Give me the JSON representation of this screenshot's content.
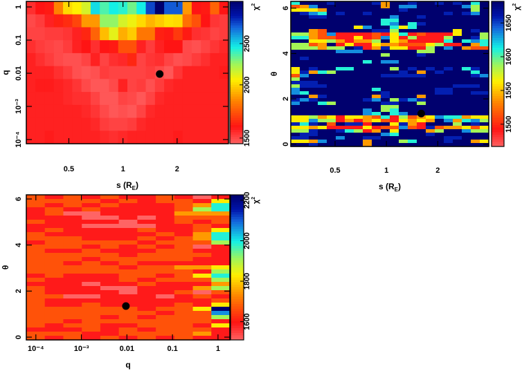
{
  "colorbar_label": {
    "main": "χ",
    "sup": "2"
  },
  "chart_data": [
    {
      "type": "heatmap",
      "id": "s-q",
      "xlabel": {
        "main": "s (R",
        "sub": "E",
        "end": ")"
      },
      "ylabel": "q",
      "xscale": "log",
      "yscale": "log",
      "xlim": [
        0.29,
        3.86
      ],
      "ylim": [
        7.5e-05,
        1.47
      ],
      "xticks": [
        {
          "v": 0.5,
          "label": "0.5"
        },
        {
          "v": 1,
          "label": "1"
        },
        {
          "v": 2,
          "label": "2"
        }
      ],
      "yticks": [
        {
          "v": 1,
          "label": "1"
        },
        {
          "v": 0.1,
          "label": "0.1"
        },
        {
          "v": 0.01,
          "label": "0.01"
        },
        {
          "v": 0.001,
          "label": "10⁻³"
        },
        {
          "v": 0.0001,
          "label": "10⁻⁴"
        }
      ],
      "colorbar": {
        "scale": "log",
        "clim": [
          1455,
          3140
        ],
        "ticks": [
          {
            "v": 1500,
            "label": "1500"
          },
          {
            "v": 2000,
            "label": "2000"
          },
          {
            "v": 2500,
            "label": "2500"
          }
        ]
      },
      "best_fit": {
        "x": 1.6,
        "y": 0.0095
      },
      "z_levels_note": "rows top-to-bottom, normalized colour level 0 (min) to 1 (max)",
      "z": [
        [
          0.08,
          0.12,
          0.13,
          0.3,
          0.42,
          0.45,
          0.5,
          0.7,
          0.63,
          0.68,
          0.66,
          0.6,
          0.68,
          0.85,
          1.0,
          0.83,
          0.83,
          0.33,
          0.12,
          0.13,
          0.25,
          0.12
        ],
        [
          0.04,
          0.06,
          0.1,
          0.14,
          0.16,
          0.2,
          0.33,
          0.33,
          0.57,
          0.57,
          0.5,
          0.47,
          0.42,
          0.37,
          0.4,
          0.43,
          0.42,
          0.27,
          0.22,
          0.12,
          0.07,
          0.06
        ],
        [
          0.05,
          0.05,
          0.06,
          0.06,
          0.07,
          0.1,
          0.15,
          0.25,
          0.38,
          0.48,
          0.36,
          0.4,
          0.28,
          0.28,
          0.14,
          0.13,
          0.18,
          0.13,
          0.08,
          0.07,
          0.05,
          0.06
        ],
        [
          0.08,
          0.06,
          0.05,
          0.04,
          0.06,
          0.1,
          0.12,
          0.08,
          0.12,
          0.13,
          0.22,
          0.22,
          0.1,
          0.06,
          0.1,
          0.12,
          0.12,
          0.04,
          0.03,
          0.05,
          0.07,
          0.09
        ],
        [
          0.1,
          0.08,
          0.06,
          0.04,
          0.03,
          0.03,
          0.05,
          0.1,
          0.05,
          0.08,
          0.09,
          0.15,
          0.05,
          0.07,
          0.08,
          0.05,
          0.03,
          0.04,
          0.06,
          0.08,
          0.1,
          0.1
        ],
        [
          0.1,
          0.1,
          0.1,
          0.08,
          0.06,
          0.03,
          0.02,
          0.03,
          0.06,
          0.05,
          0.05,
          0.05,
          0.05,
          0.06,
          0.04,
          0.02,
          0.07,
          0.1,
          0.1,
          0.1,
          0.1,
          0.11
        ],
        [
          0.1,
          0.11,
          0.11,
          0.1,
          0.09,
          0.07,
          0.04,
          0.02,
          0.02,
          0.04,
          0.1,
          0.05,
          0.06,
          0.03,
          0.06,
          0.09,
          0.1,
          0.1,
          0.1,
          0.1,
          0.1,
          0.1
        ],
        [
          0.1,
          0.1,
          0.1,
          0.1,
          0.09,
          0.08,
          0.08,
          0.05,
          0.02,
          0.02,
          0.05,
          0.04,
          0.02,
          0.05,
          0.09,
          0.1,
          0.1,
          0.1,
          0.1,
          0.1,
          0.1,
          0.1
        ],
        [
          0.1,
          0.1,
          0.1,
          0.1,
          0.1,
          0.1,
          0.09,
          0.07,
          0.04,
          0.02,
          0.03,
          0.02,
          0.05,
          0.09,
          0.1,
          0.1,
          0.1,
          0.1,
          0.1,
          0.1,
          0.1,
          0.1
        ],
        [
          0.1,
          0.1,
          0.1,
          0.1,
          0.1,
          0.1,
          0.1,
          0.09,
          0.06,
          0.05,
          0.05,
          0.06,
          0.09,
          0.1,
          0.1,
          0.1,
          0.1,
          0.1,
          0.1,
          0.1,
          0.1,
          0.1
        ],
        [
          0.1,
          0.1,
          0.11,
          0.1,
          0.1,
          0.1,
          0.1,
          0.1,
          0.09,
          0.08,
          0.09,
          0.1,
          0.1,
          0.1,
          0.1,
          0.1,
          0.11,
          0.1,
          0.1,
          0.1,
          0.1,
          0.1
        ]
      ]
    },
    {
      "type": "heatmap",
      "id": "s-theta",
      "xlabel": {
        "main": "s (R",
        "sub": "E",
        "end": ")"
      },
      "ylabel": "θ",
      "xscale": "log",
      "yscale": "linear",
      "xlim": [
        0.275,
        3.98
      ],
      "ylim": [
        -0.1,
        6.3
      ],
      "xticks": [
        {
          "v": 0.5,
          "label": "0.5"
        },
        {
          "v": 1,
          "label": "1"
        },
        {
          "v": 2,
          "label": "2"
        }
      ],
      "yticks": [
        {
          "v": 0,
          "label": "0"
        },
        {
          "v": 2,
          "label": "2"
        },
        {
          "v": 4,
          "label": "4"
        },
        {
          "v": 6,
          "label": "6"
        }
      ],
      "colorbar": {
        "scale": "linear",
        "clim": [
          1467,
          1682
        ],
        "ticks": [
          {
            "v": 1500,
            "label": "1500"
          },
          {
            "v": 1550,
            "label": "1550"
          },
          {
            "v": 1600,
            "label": "1600"
          },
          {
            "v": 1650,
            "label": "1650"
          }
        ]
      },
      "best_fit": {
        "x": 1.6,
        "y": 1.35
      },
      "z_levels_note": "rows top-to-bottom, digit = colour level 0 (min) to 9 (max)",
      "z_digits": [
        "6999899998399899898969",
        "2379999999397799999759",
        "4443999999998999999959",
        "9876989989999999989879",
        "9988999999979989999999",
        "9999999999669999999999",
        "9999999999679689999999",
        "9999999479964699999999",
        "9932999998859999994989",
        "5532711112146121114995",
        "6632211412741511159985",
        "9944531335943111169676",
        "5523914114332224511936",
        "5553559813844115979322",
        "9999977799999955999999",
        "9999999999599989999999",
        "9899999999999999999999",
        "9999999969779999999999",
        "9999999999999999999999",
        "4989966999959898989689",
        "4836599999998939899969",
        "2799999999888889999987",
        "5999999999999999999999",
        "8889999999999999999999",
        "5888999999999999998889",
        "7999999996999999889999",
        "7699999999899999889988",
        "9938999993899939999999",
        "8789999987958789999999",
        "7996599999889959999999",
        "9999999999559999999999",
        "9999999979569999999999",
        "9999999976967999999999",
        "4453414432615234766344",
        "4475513134214343973675",
        "8689298819948319995989",
        "4434111141227218233424",
        "5589986513949993599755",
        "9889999999769998999999",
        "8899979988999999988999",
        "4437999939995699989934",
        "9989999939999999999999"
      ]
    },
    {
      "type": "heatmap",
      "id": "q-theta",
      "xlabel": {
        "main": "q",
        "sub": "",
        "end": ""
      },
      "ylabel": "θ",
      "xscale": "log",
      "yscale": "linear",
      "xlim": [
        6.17e-05,
        1.82
      ],
      "ylim": [
        -0.12,
        6.18
      ],
      "xticks": [
        {
          "v": 0.0001,
          "label": "10⁻⁴"
        },
        {
          "v": 0.001,
          "label": "10⁻³"
        },
        {
          "v": 0.01,
          "label": "0.01"
        },
        {
          "v": 0.1,
          "label": "0.1"
        },
        {
          "v": 1,
          "label": "1"
        }
      ],
      "yticks": [
        {
          "v": 0,
          "label": "0"
        },
        {
          "v": 2,
          "label": "2"
        },
        {
          "v": 4,
          "label": "4"
        },
        {
          "v": 6,
          "label": "6"
        }
      ],
      "colorbar": {
        "scale": "linear",
        "clim": [
          1510,
          2227
        ],
        "ticks": [
          {
            "v": 1600,
            "label": "1600"
          },
          {
            "v": 1800,
            "label": "1800"
          },
          {
            "v": 2000,
            "label": "2000"
          },
          {
            "v": 2200,
            "label": "2200"
          }
        ]
      },
      "best_fit": {
        "x": 0.0095,
        "y": 1.35
      },
      "z_levels_note": "rows top-to-bottom, digit = colour level 0 (min) to 9 (max)",
      "z_digits": [
        "21212112101",
        "22221212214",
        "21212111236",
        "12121111256",
        "12001111333",
        "11100101222",
        "21111011212",
        "11100001121",
        "12111121124",
        "21111112136",
        "22211121236",
        "12222212225",
        "22212121201",
        "21121112211",
        "22222122221",
        "22212222211",
        "22121211111",
        "22222122334",
        "22222222215",
        "12111221246",
        "21111212225",
        "11101121113",
        "21110011135",
        "21111011202",
        "22001110121",
        "21111111112",
        "21121111214",
        "22222212249",
        "22222221227",
        "22221212225",
        "22122222221",
        "21221122214",
        "11121212221",
        "22211222231",
        "21212121211"
      ]
    }
  ]
}
